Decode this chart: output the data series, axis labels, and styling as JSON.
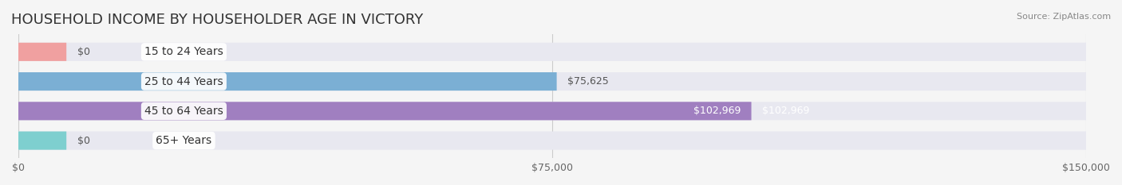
{
  "title": "HOUSEHOLD INCOME BY HOUSEHOLDER AGE IN VICTORY",
  "source": "Source: ZipAtlas.com",
  "categories": [
    "15 to 24 Years",
    "25 to 44 Years",
    "45 to 64 Years",
    "65+ Years"
  ],
  "values": [
    0,
    75625,
    102969,
    0
  ],
  "bar_colors": [
    "#f0a0a0",
    "#7bafd4",
    "#a07fc0",
    "#7ecfcf"
  ],
  "label_colors": [
    "#555555",
    "#555555",
    "#ffffff",
    "#555555"
  ],
  "value_labels": [
    "$0",
    "$75,625",
    "$102,969",
    "$0"
  ],
  "xlim": [
    0,
    150000
  ],
  "xticks": [
    0,
    75000,
    150000
  ],
  "xtick_labels": [
    "$0",
    "$75,000",
    "$150,000"
  ],
  "bg_color": "#f5f5f5",
  "bar_bg_color": "#e8e8f0",
  "bar_height": 0.62,
  "title_fontsize": 13,
  "label_fontsize": 10,
  "value_fontsize": 9,
  "source_fontsize": 8
}
